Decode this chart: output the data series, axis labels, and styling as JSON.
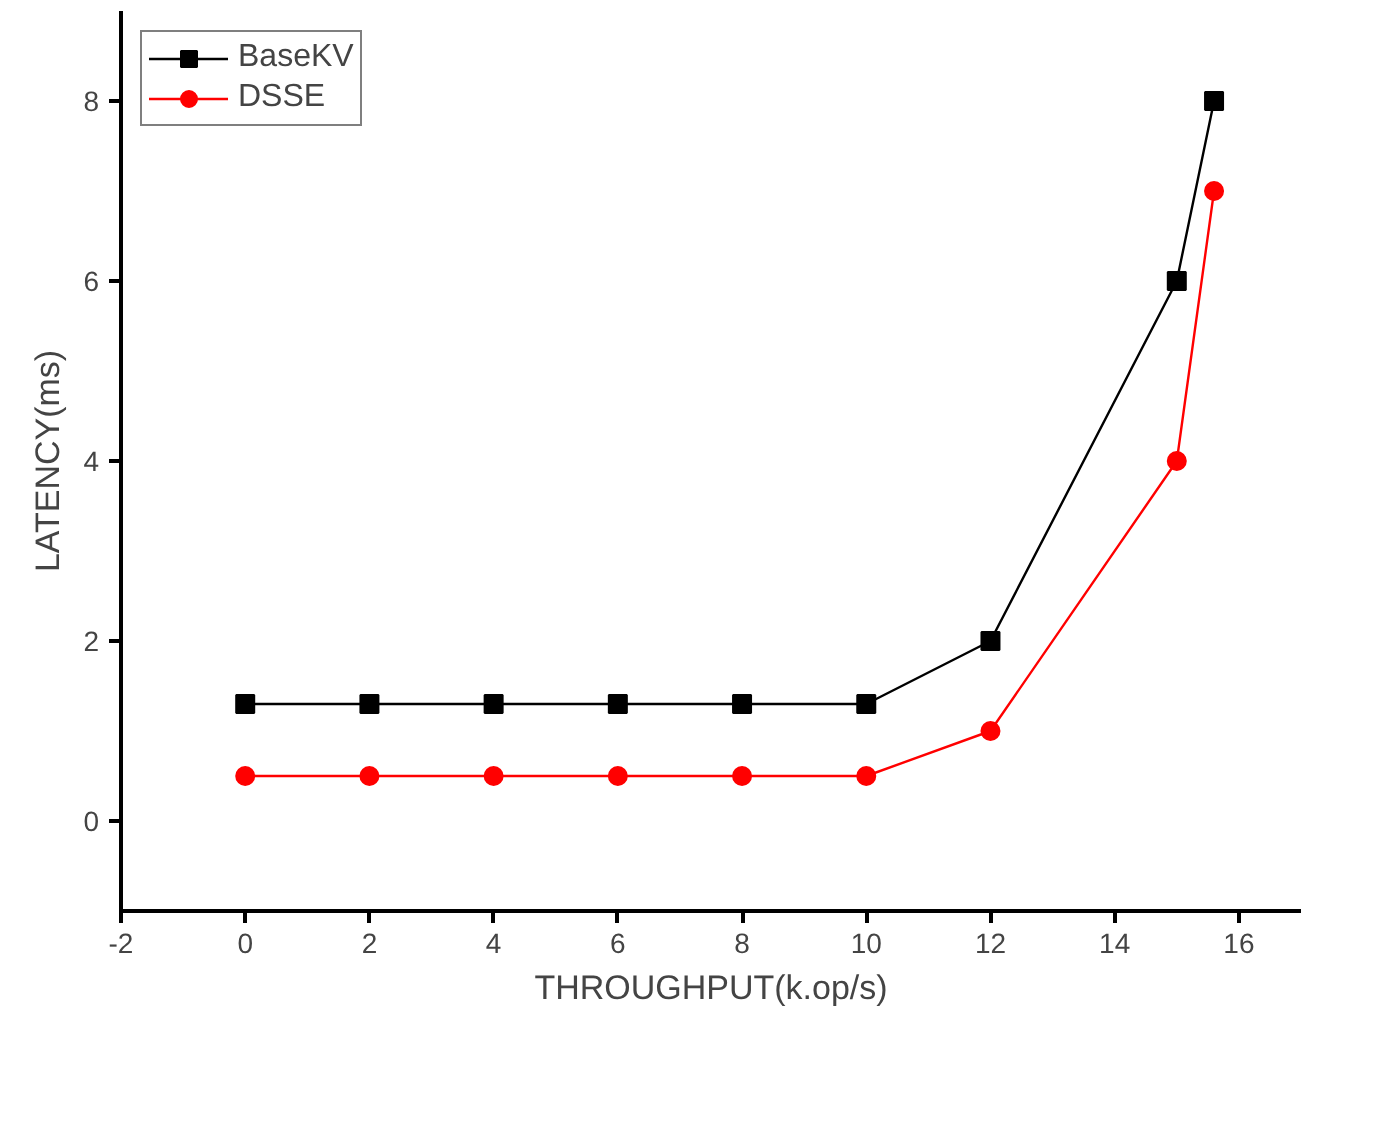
{
  "chart_data": {
    "type": "line",
    "xlabel": "THROUGHPUT(k.op/s)",
    "ylabel": "LATENCY(ms)",
    "x": [
      0,
      2,
      4,
      6,
      8,
      10,
      12,
      15,
      15.6
    ],
    "series": [
      {
        "name": "BaseKV",
        "color": "#000000",
        "marker": "square",
        "values": [
          1.3,
          1.3,
          1.3,
          1.3,
          1.3,
          1.3,
          2,
          6,
          8
        ]
      },
      {
        "name": "DSSE",
        "color": "#ff0000",
        "marker": "circle",
        "values": [
          0.5,
          0.5,
          0.5,
          0.5,
          0.5,
          0.5,
          1,
          4,
          7
        ]
      }
    ],
    "xlim": [
      -2,
      17
    ],
    "ylim": [
      -1,
      9
    ],
    "xticks": [
      -2,
      0,
      2,
      4,
      6,
      8,
      10,
      12,
      14,
      16
    ],
    "yticks": [
      0,
      2,
      4,
      6,
      8
    ],
    "grid": false,
    "legend": "top left",
    "line_style": "solid"
  }
}
